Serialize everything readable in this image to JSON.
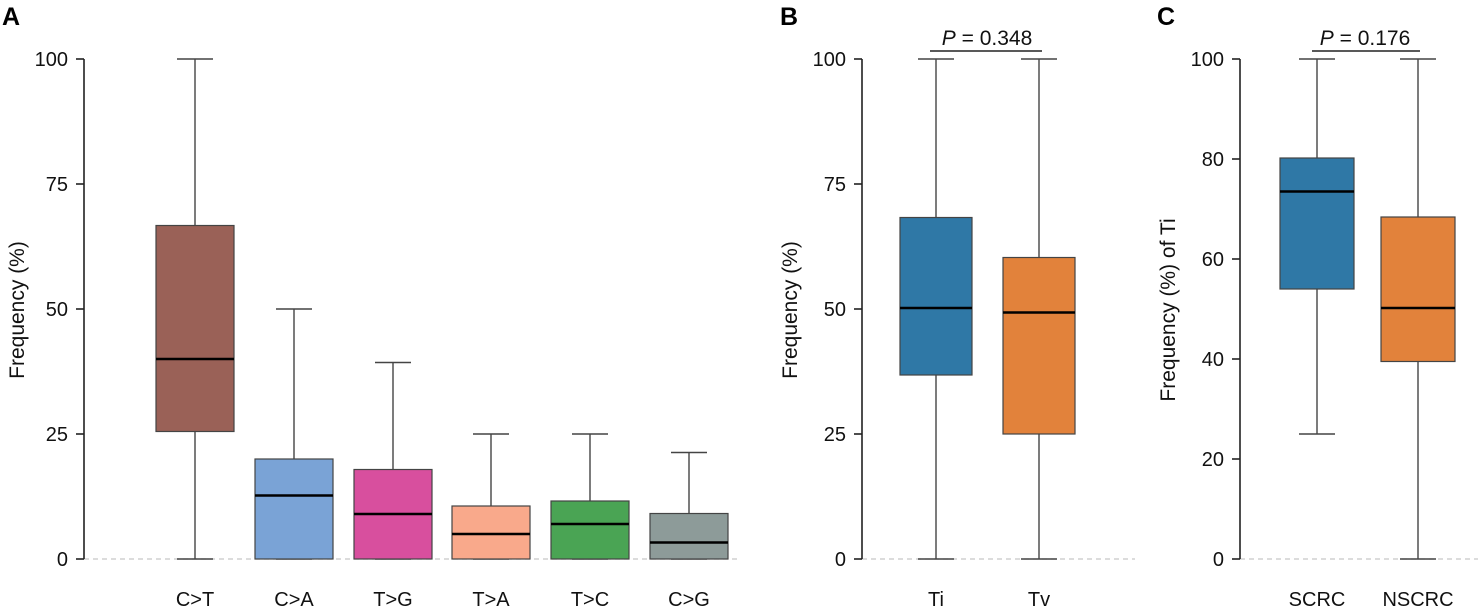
{
  "chart_data": [
    {
      "panel": "A",
      "type": "box",
      "ylabel": "Frequency (%)",
      "ylim": [
        0,
        100
      ],
      "yticks": [
        0,
        25,
        50,
        75,
        100
      ],
      "categories": [
        "C>T",
        "C>A",
        "T>G",
        "T>A",
        "T>C",
        "C>G"
      ],
      "boxes": [
        {
          "min": 0,
          "q1": 25.5,
          "median": 40,
          "q3": 66.7,
          "max": 100,
          "color": "#9a6157"
        },
        {
          "min": 0,
          "q1": 0,
          "median": 12.7,
          "q3": 20,
          "max": 50,
          "color": "#7aa3d6"
        },
        {
          "min": 0,
          "q1": 0,
          "median": 9,
          "q3": 17.9,
          "max": 39.3,
          "color": "#d84f9e"
        },
        {
          "min": 0,
          "q1": 0,
          "median": 5,
          "q3": 10.6,
          "max": 25,
          "color": "#f9a98b"
        },
        {
          "min": 0,
          "q1": 0,
          "median": 7,
          "q3": 11.6,
          "max": 25,
          "color": "#4aa454"
        },
        {
          "min": 0,
          "q1": 0,
          "median": 3.3,
          "q3": 9.1,
          "max": 21.3,
          "color": "#8d9b99"
        }
      ]
    },
    {
      "panel": "B",
      "type": "box",
      "ylabel": "Frequency (%)",
      "ylim": [
        0,
        100
      ],
      "yticks": [
        0,
        25,
        50,
        75,
        100
      ],
      "categories": [
        "Ti",
        "Tv"
      ],
      "boxes": [
        {
          "min": 0,
          "q1": 36.8,
          "median": 50.2,
          "q3": 68.3,
          "max": 100,
          "color": "#2f78a6"
        },
        {
          "min": 0,
          "q1": 25,
          "median": 49.3,
          "q3": 60.3,
          "max": 100,
          "color": "#e2823b"
        }
      ],
      "annotation": {
        "p_symbol": "P",
        "p_text": " = 0.348"
      }
    },
    {
      "panel": "C",
      "type": "box",
      "ylabel": "Frequency (%) of Ti",
      "ylim": [
        0,
        100
      ],
      "yticks": [
        0,
        20,
        40,
        60,
        80,
        100
      ],
      "categories": [
        "SCRC",
        "NSCRC"
      ],
      "boxes": [
        {
          "min": 25,
          "q1": 54,
          "median": 73.5,
          "q3": 80.2,
          "max": 100,
          "color": "#2f78a6"
        },
        {
          "min": 0,
          "q1": 39.5,
          "median": 50.2,
          "q3": 68.4,
          "max": 100,
          "color": "#e2823b"
        }
      ],
      "annotation": {
        "p_symbol": "P",
        "p_text": " = 0.176"
      }
    }
  ]
}
